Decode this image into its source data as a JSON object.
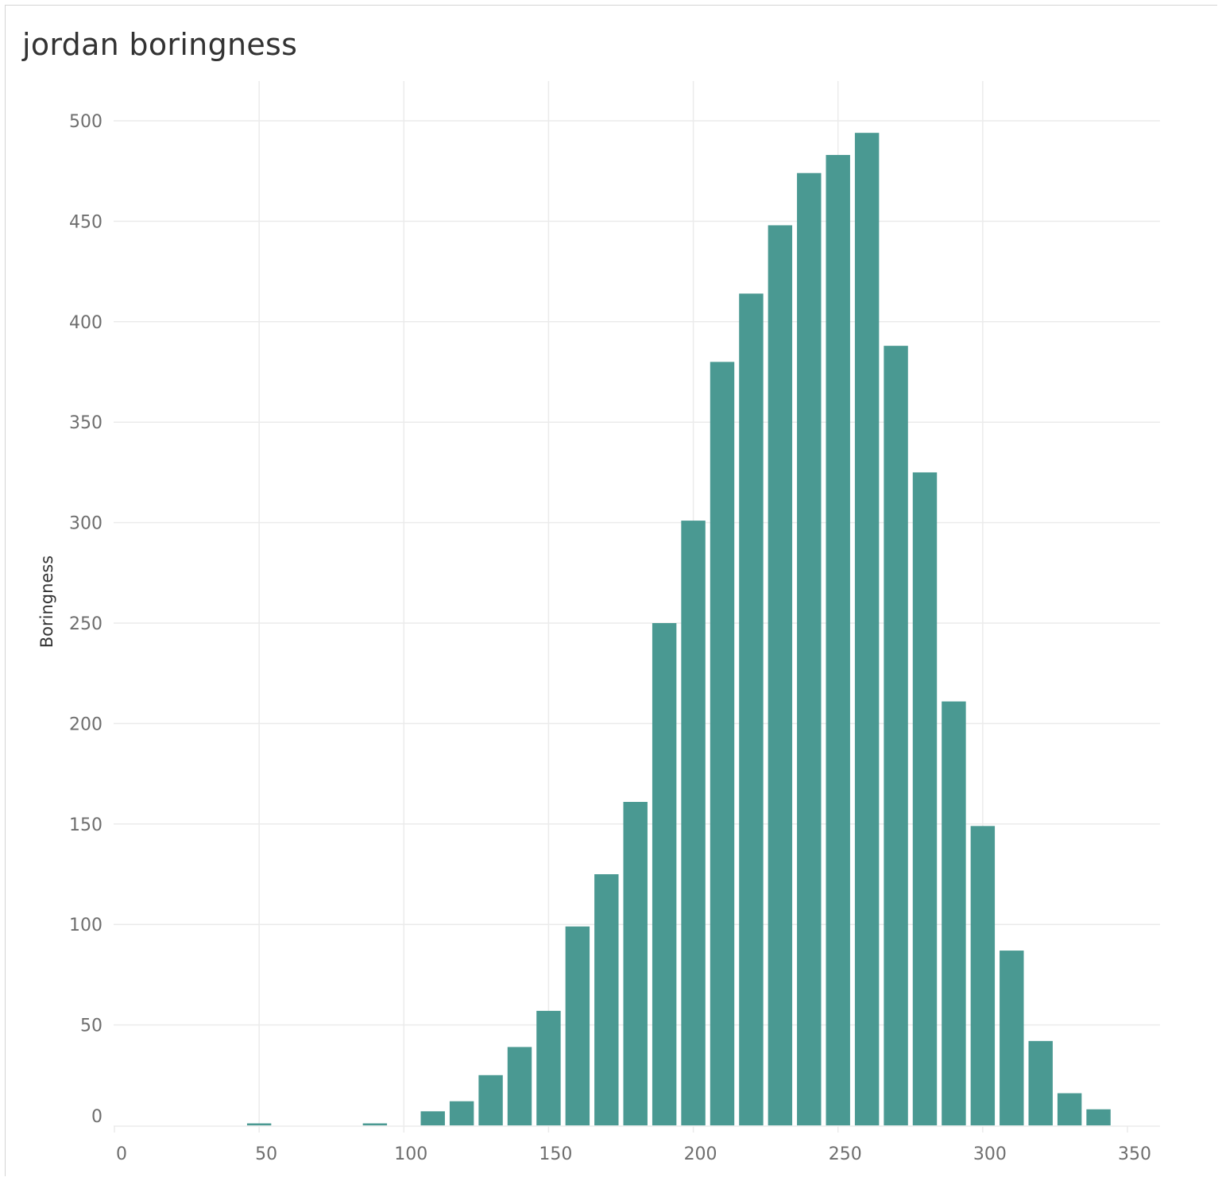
{
  "title": "jordan boringness",
  "colors": {
    "bar": "#4a9992",
    "grid": "#ebebeb",
    "tick": "#6e6e6e"
  },
  "chart_data": {
    "type": "bar",
    "title": "jordan boringness",
    "xlabel": "",
    "ylabel": "Boringness",
    "xlim": [
      0,
      360
    ],
    "ylim": [
      0,
      520
    ],
    "xticks": [
      0,
      50,
      100,
      150,
      200,
      250,
      300,
      350
    ],
    "yticks": [
      0,
      50,
      100,
      150,
      200,
      250,
      300,
      350,
      400,
      450,
      500
    ],
    "bin_width": 10,
    "grid": true,
    "x": [
      50,
      90,
      110,
      120,
      130,
      140,
      150,
      160,
      170,
      180,
      190,
      200,
      210,
      220,
      230,
      240,
      250,
      260,
      270,
      280,
      290,
      300,
      310,
      320,
      330,
      340
    ],
    "values": [
      1,
      1,
      7,
      12,
      25,
      39,
      57,
      99,
      125,
      161,
      250,
      301,
      380,
      414,
      448,
      474,
      483,
      494,
      388,
      325,
      211,
      149,
      87,
      42,
      16,
      8
    ]
  }
}
